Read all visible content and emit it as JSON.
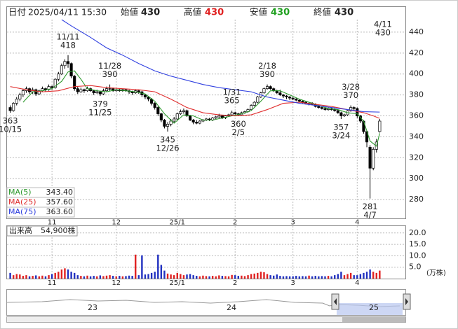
{
  "header": {
    "date_label": "日付",
    "datetime": "2025/04/11 15:30",
    "open_label": "始値",
    "open": 430,
    "high_label": "高値",
    "high": 430,
    "low_label": "安値",
    "low": 430,
    "close_label": "終値",
    "close": 430
  },
  "chart_data": {
    "type": "candlestick",
    "up_color": "#ffffff",
    "down_color": "#000000",
    "edge_color": "#000000",
    "ylim": [
      262,
      452
    ],
    "yticks": [
      280,
      300,
      320,
      340,
      360,
      380,
      400,
      420,
      440
    ],
    "grid": true,
    "xlim": [
      -1,
      123
    ],
    "xticks": [
      {
        "value": 13,
        "label": "11"
      },
      {
        "value": 33,
        "label": "12"
      },
      {
        "value": 52,
        "label": "25/1"
      },
      {
        "value": 70,
        "label": "2"
      },
      {
        "value": 88,
        "label": "3"
      },
      {
        "value": 108,
        "label": "4"
      }
    ],
    "candles": [
      [
        368,
        370,
        363,
        365
      ],
      [
        365,
        373,
        364,
        372
      ],
      [
        372,
        378,
        370,
        376
      ],
      [
        376,
        382,
        374,
        380
      ],
      [
        380,
        386,
        378,
        384
      ],
      [
        384,
        388,
        382,
        386
      ],
      [
        386,
        387,
        381,
        383
      ],
      [
        383,
        387,
        381,
        385
      ],
      [
        385,
        386,
        379,
        381
      ],
      [
        381,
        385,
        380,
        384
      ],
      [
        384,
        388,
        383,
        386
      ],
      [
        386,
        387,
        383,
        385
      ],
      [
        385,
        390,
        384,
        388
      ],
      [
        388,
        389,
        385,
        387
      ],
      [
        387,
        396,
        386,
        395
      ],
      [
        395,
        402,
        393,
        400
      ],
      [
        400,
        410,
        399,
        408
      ],
      [
        408,
        414,
        405,
        412
      ],
      [
        412,
        418,
        406,
        410
      ],
      [
        410,
        411,
        396,
        398
      ],
      [
        398,
        399,
        384,
        386
      ],
      [
        386,
        388,
        381,
        383
      ],
      [
        383,
        387,
        382,
        385
      ],
      [
        385,
        386,
        382,
        384
      ],
      [
        384,
        388,
        383,
        386
      ],
      [
        386,
        387,
        383,
        384
      ],
      [
        384,
        385,
        380,
        382
      ],
      [
        382,
        385,
        381,
        383
      ],
      [
        383,
        384,
        379,
        381
      ],
      [
        381,
        386,
        380,
        384
      ],
      [
        384,
        388,
        383,
        386
      ],
      [
        386,
        390,
        384,
        386
      ],
      [
        386,
        387,
        383,
        384
      ],
      [
        384,
        386,
        383,
        385
      ],
      [
        385,
        386,
        383,
        384
      ],
      [
        384,
        386,
        383,
        385
      ],
      [
        385,
        386,
        383,
        384
      ],
      [
        384,
        385,
        381,
        383
      ],
      [
        383,
        384,
        380,
        382
      ],
      [
        382,
        385,
        381,
        384
      ],
      [
        384,
        385,
        381,
        383
      ],
      [
        383,
        384,
        378,
        380
      ],
      [
        380,
        381,
        376,
        378
      ],
      [
        378,
        379,
        374,
        376
      ],
      [
        376,
        377,
        370,
        372
      ],
      [
        372,
        373,
        366,
        368
      ],
      [
        368,
        369,
        360,
        362
      ],
      [
        362,
        363,
        354,
        356
      ],
      [
        356,
        357,
        348,
        350
      ],
      [
        350,
        354,
        345,
        352
      ],
      [
        352,
        357,
        350,
        355
      ],
      [
        355,
        359,
        353,
        357
      ],
      [
        357,
        363,
        356,
        362
      ],
      [
        362,
        366,
        361,
        364
      ],
      [
        364,
        367,
        362,
        365
      ],
      [
        365,
        366,
        359,
        360
      ],
      [
        360,
        361,
        355,
        356
      ],
      [
        356,
        357,
        352,
        354
      ],
      [
        354,
        356,
        352,
        353
      ],
      [
        353,
        356,
        352,
        355
      ],
      [
        355,
        357,
        354,
        356
      ],
      [
        356,
        358,
        355,
        357
      ],
      [
        357,
        358,
        355,
        356
      ],
      [
        356,
        359,
        355,
        358
      ],
      [
        358,
        360,
        357,
        359
      ],
      [
        359,
        362,
        358,
        360
      ],
      [
        360,
        361,
        357,
        358
      ],
      [
        358,
        361,
        357,
        360
      ],
      [
        360,
        362,
        359,
        361
      ],
      [
        361,
        365,
        360,
        363
      ],
      [
        363,
        364,
        361,
        362
      ],
      [
        362,
        363,
        360,
        361
      ],
      [
        361,
        364,
        360,
        363
      ],
      [
        363,
        365,
        362,
        364
      ],
      [
        364,
        367,
        363,
        366
      ],
      [
        366,
        371,
        365,
        370
      ],
      [
        370,
        374,
        369,
        373
      ],
      [
        373,
        379,
        372,
        378
      ],
      [
        378,
        383,
        377,
        382
      ],
      [
        382,
        387,
        381,
        386
      ],
      [
        386,
        390,
        385,
        388
      ],
      [
        388,
        389,
        385,
        386
      ],
      [
        386,
        387,
        383,
        384
      ],
      [
        384,
        385,
        381,
        382
      ],
      [
        382,
        385,
        379,
        380
      ],
      [
        380,
        381,
        377,
        379
      ],
      [
        379,
        380,
        376,
        378
      ],
      [
        378,
        379,
        375,
        377
      ],
      [
        377,
        378,
        375,
        376
      ],
      [
        376,
        377,
        374,
        375
      ],
      [
        375,
        376,
        373,
        374
      ],
      [
        374,
        375,
        372,
        373
      ],
      [
        373,
        374,
        371,
        372
      ],
      [
        372,
        373,
        370,
        372
      ],
      [
        372,
        373,
        370,
        371
      ],
      [
        371,
        372,
        368,
        369
      ],
      [
        369,
        370,
        367,
        368
      ],
      [
        368,
        369,
        366,
        367
      ],
      [
        367,
        368,
        365,
        366
      ],
      [
        366,
        368,
        365,
        367
      ],
      [
        367,
        368,
        365,
        366
      ],
      [
        366,
        367,
        364,
        365
      ],
      [
        365,
        366,
        362,
        363
      ],
      [
        363,
        364,
        357,
        360
      ],
      [
        360,
        362,
        359,
        361
      ],
      [
        361,
        366,
        360,
        365
      ],
      [
        365,
        370,
        364,
        368
      ],
      [
        368,
        369,
        365,
        367
      ],
      [
        367,
        368,
        358,
        360
      ],
      [
        360,
        361,
        353,
        355
      ],
      [
        355,
        356,
        343,
        345
      ],
      [
        345,
        346,
        330,
        335
      ],
      [
        330,
        332,
        281,
        310
      ],
      [
        310,
        330,
        308,
        328
      ],
      [
        328,
        338,
        325,
        335
      ],
      [
        345,
        357,
        344,
        355
      ]
    ],
    "series": [
      {
        "name": "MA(5)",
        "color": "#2e9a2e",
        "legend_value": "343.40",
        "x": [
          4,
          7,
          10,
          13,
          16,
          18,
          20,
          22,
          24,
          27,
          30,
          33,
          36,
          39,
          42,
          45,
          48,
          51,
          54,
          57,
          60,
          63,
          66,
          69,
          72,
          75,
          78,
          81,
          84,
          87,
          90,
          93,
          96,
          99,
          102,
          105,
          108,
          110,
          112,
          114,
          115
        ],
        "values": [
          373,
          383,
          384,
          386,
          393,
          402,
          403,
          395,
          386,
          384,
          383,
          385,
          384,
          383,
          381,
          374,
          362,
          353,
          361,
          360,
          356,
          356,
          358,
          360,
          362,
          365,
          374,
          384,
          384,
          380,
          376,
          373,
          370,
          367,
          366,
          363,
          362,
          355,
          336,
          331,
          343.4
        ]
      },
      {
        "name": "MA(25)",
        "color": "#e03030",
        "legend_value": "357.60",
        "x": [
          0,
          5,
          10,
          15,
          20,
          25,
          30,
          35,
          40,
          45,
          50,
          55,
          60,
          65,
          70,
          75,
          80,
          85,
          90,
          95,
          100,
          105,
          110,
          113,
          115
        ],
        "values": [
          388,
          385,
          383,
          384,
          388,
          389,
          387,
          386,
          385,
          383,
          376,
          368,
          363,
          361,
          360,
          361,
          366,
          372,
          373,
          371,
          369,
          366,
          363,
          360,
          357.6
        ]
      },
      {
        "name": "MA(75)",
        "color": "#3040e0",
        "legend_value": "363.60",
        "x": [
          16,
          19,
          25,
          30,
          35,
          40,
          45,
          50,
          55,
          60,
          65,
          70,
          75,
          80,
          85,
          90,
          95,
          100,
          105,
          110,
          115
        ],
        "values": [
          452,
          446,
          435,
          425,
          418,
          410,
          403,
          398,
          394,
          390,
          387,
          385,
          383,
          378,
          375,
          372,
          370,
          368,
          366,
          364,
          363.6
        ]
      }
    ],
    "annotations": [
      {
        "date": "10/15",
        "value": 363,
        "x": 0
      },
      {
        "date": "11/11",
        "value": 418,
        "x": 18
      },
      {
        "date": "11/25",
        "value": 379,
        "x": 28
      },
      {
        "date": "11/28",
        "value": 390,
        "x": 31
      },
      {
        "date": "12/26",
        "value": 345,
        "x": 49
      },
      {
        "date": "1/31",
        "value": 365,
        "x": 69
      },
      {
        "date": "2/5",
        "value": 360,
        "x": 71
      },
      {
        "date": "2/18",
        "value": 390,
        "x": 80
      },
      {
        "date": "3/24",
        "value": 357,
        "x": 103
      },
      {
        "date": "3/28",
        "value": 370,
        "x": 106
      },
      {
        "date": "4/7",
        "value": 281,
        "x": 112
      },
      {
        "date": "4/11",
        "value": 430,
        "x": 116
      }
    ]
  },
  "volume": {
    "label": "出来高",
    "total": "54,900株",
    "unit": "(万株)",
    "up_color": "#e02020",
    "down_color": "#2030c0",
    "ylim": [
      0,
      23
    ],
    "yticks": [
      {
        "value": 5,
        "label": "5.0"
      },
      {
        "value": 10,
        "label": "10.0"
      },
      {
        "value": 15,
        "label": "15.0"
      },
      {
        "value": 20,
        "label": "20.0"
      }
    ],
    "values": [
      2.5,
      1.5,
      2,
      1.8,
      1.2,
      1.5,
      1,
      1.2,
      1.4,
      1,
      1.3,
      1,
      1.5,
      2,
      2.5,
      3,
      4,
      4.5,
      4,
      3,
      2.5,
      1.5,
      1.2,
      1,
      1.3,
      1,
      1.2,
      1,
      1.4,
      1.1,
      1.3,
      1.5,
      1.2,
      1,
      1.2,
      1,
      1.1,
      1.3,
      1.2,
      10.5,
      1.5,
      10.2,
      1.8,
      2,
      2.5,
      3,
      10.5,
      6,
      3.5,
      2.2,
      1.8,
      1.5,
      2.5,
      2,
      1.5,
      1.8,
      2,
      1.5,
      1.2,
      1,
      1.3,
      1.1,
      1,
      1.2,
      1,
      1.4,
      1.2,
      1.1,
      1,
      1.6,
      1.5,
      1.2,
      1.3,
      1.1,
      1.5,
      2,
      2.2,
      2.5,
      3,
      2.8,
      2,
      1.5,
      1.3,
      1.8,
      1.2,
      1,
      1.1,
      1,
      1,
      1.2,
      1,
      1.1,
      1,
      1.3,
      1,
      1.2,
      1,
      1.1,
      1,
      1.2,
      1,
      1.5,
      2,
      3,
      1.5,
      2,
      2.5,
      1.5,
      1.5,
      2,
      2.5,
      3,
      4,
      3,
      2.5,
      3.5
    ]
  },
  "navigator": {
    "labels": [
      "23",
      "24",
      "25"
    ]
  }
}
